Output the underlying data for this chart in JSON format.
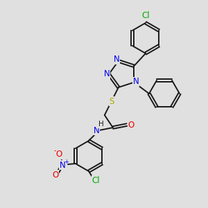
{
  "bg_color": "#e0e0e0",
  "bond_color": "#1a1a1a",
  "atom_colors": {
    "N": "#0000ee",
    "O": "#ee0000",
    "S": "#aaaa00",
    "Cl": "#00aa00",
    "C": "#1a1a1a"
  },
  "font_size": 8.5,
  "lw": 1.4,
  "r_ring": 22
}
